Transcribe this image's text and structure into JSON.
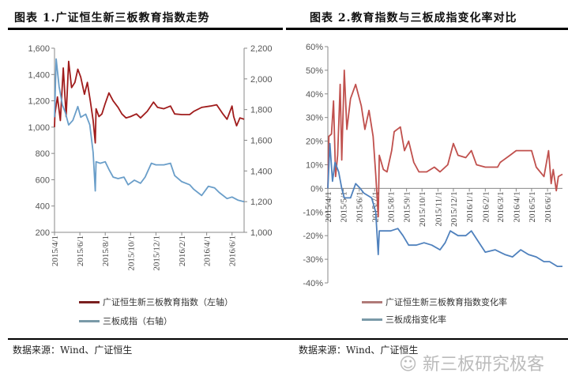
{
  "chart_data": [
    {
      "type": "line",
      "title": "图表 1.广证恒生新三板教育指数走势",
      "yleft": {
        "ticks": [
          "200",
          "400",
          "600",
          "800",
          "1,000",
          "1,200",
          "1,400",
          "1,600"
        ],
        "lim": [
          200,
          1600
        ]
      },
      "yright": {
        "ticks": [
          "1,000",
          "1,200",
          "1,400",
          "1,600",
          "1,800",
          "2,000",
          "2,200"
        ],
        "lim": [
          1000,
          2200
        ]
      },
      "xticks": [
        "2015/4/1",
        "2015/6/1",
        "2015/8/1",
        "2015/10/1",
        "2015/12/1",
        "2016/2/1",
        "2016/4/1",
        "2016/6/1"
      ],
      "legend_position": "bottom",
      "grid": false,
      "series": [
        {
          "name": "广证恒生新三板教育指数（左轴）",
          "axis": "left",
          "color": "#a01c1c",
          "points": [
            [
              "2015-04-01",
              1000
            ],
            [
              "2015-04-02",
              1100
            ],
            [
              "2015-04-08",
              1230
            ],
            [
              "2015-04-15",
              1050
            ],
            [
              "2015-04-22",
              1450
            ],
            [
              "2015-04-29",
              1080
            ],
            [
              "2015-05-05",
              1500
            ],
            [
              "2015-05-12",
              1300
            ],
            [
              "2015-05-20",
              1340
            ],
            [
              "2015-05-27",
              1440
            ],
            [
              "2015-06-03",
              1380
            ],
            [
              "2015-06-12",
              1250
            ],
            [
              "2015-06-19",
              1340
            ],
            [
              "2015-06-26",
              1200
            ],
            [
              "2015-07-03",
              1050
            ],
            [
              "2015-07-08",
              880
            ],
            [
              "2015-07-10",
              1140
            ],
            [
              "2015-07-17",
              1080
            ],
            [
              "2015-07-24",
              1100
            ],
            [
              "2015-08-01",
              1180
            ],
            [
              "2015-08-10",
              1260
            ],
            [
              "2015-08-20",
              1200
            ],
            [
              "2015-09-01",
              1150
            ],
            [
              "2015-09-10",
              1100
            ],
            [
              "2015-09-20",
              1070
            ],
            [
              "2015-10-01",
              1080
            ],
            [
              "2015-10-15",
              1100
            ],
            [
              "2015-10-25",
              1070
            ],
            [
              "2015-11-10",
              1120
            ],
            [
              "2015-11-25",
              1190
            ],
            [
              "2015-12-05",
              1150
            ],
            [
              "2015-12-20",
              1140
            ],
            [
              "2016-01-05",
              1160
            ],
            [
              "2016-01-15",
              1100
            ],
            [
              "2016-02-01",
              1095
            ],
            [
              "2016-02-20",
              1095
            ],
            [
              "2016-03-01",
              1120
            ],
            [
              "2016-03-20",
              1150
            ],
            [
              "2016-04-10",
              1160
            ],
            [
              "2016-04-25",
              1170
            ],
            [
              "2016-05-10",
              1100
            ],
            [
              "2016-05-20",
              1060
            ],
            [
              "2016-06-01",
              1160
            ],
            [
              "2016-06-05",
              1080
            ],
            [
              "2016-06-12",
              1010
            ],
            [
              "2016-06-20",
              1070
            ],
            [
              "2016-06-30",
              1060
            ]
          ]
        },
        {
          "name": "三板成指（右轴）",
          "axis": "right",
          "color": "#6a9ec9",
          "points": [
            [
              "2015-04-01",
              1750
            ],
            [
              "2015-04-05",
              2130
            ],
            [
              "2015-04-12",
              1950
            ],
            [
              "2015-04-20",
              1830
            ],
            [
              "2015-04-27",
              1780
            ],
            [
              "2015-05-05",
              1700
            ],
            [
              "2015-05-15",
              1730
            ],
            [
              "2015-05-27",
              1820
            ],
            [
              "2015-06-03",
              1750
            ],
            [
              "2015-06-15",
              1770
            ],
            [
              "2015-06-25",
              1700
            ],
            [
              "2015-07-03",
              1520
            ],
            [
              "2015-07-08",
              1270
            ],
            [
              "2015-07-10",
              1460
            ],
            [
              "2015-07-20",
              1450
            ],
            [
              "2015-08-01",
              1460
            ],
            [
              "2015-08-10",
              1410
            ],
            [
              "2015-08-20",
              1360
            ],
            [
              "2015-09-01",
              1350
            ],
            [
              "2015-09-15",
              1360
            ],
            [
              "2015-09-25",
              1310
            ],
            [
              "2015-10-10",
              1340
            ],
            [
              "2015-10-25",
              1320
            ],
            [
              "2015-11-05",
              1360
            ],
            [
              "2015-11-20",
              1450
            ],
            [
              "2015-12-01",
              1440
            ],
            [
              "2015-12-20",
              1440
            ],
            [
              "2016-01-05",
              1450
            ],
            [
              "2016-01-15",
              1370
            ],
            [
              "2016-02-01",
              1330
            ],
            [
              "2016-02-20",
              1310
            ],
            [
              "2016-03-01",
              1280
            ],
            [
              "2016-03-20",
              1240
            ],
            [
              "2016-04-05",
              1300
            ],
            [
              "2016-04-20",
              1290
            ],
            [
              "2016-05-01",
              1260
            ],
            [
              "2016-05-20",
              1220
            ],
            [
              "2016-06-01",
              1230
            ],
            [
              "2016-06-15",
              1210
            ],
            [
              "2016-06-30",
              1200
            ]
          ]
        }
      ]
    },
    {
      "type": "line",
      "title": "图表 2.教育指数与三板成指变化率对比",
      "yleft": {
        "ticks": [
          "-40%",
          "-30%",
          "-20%",
          "-10%",
          "0%",
          "10%",
          "20%",
          "30%",
          "40%",
          "50%",
          "60%"
        ],
        "lim": [
          -40,
          60
        ]
      },
      "xticks": [
        "2015/4/1",
        "2015/5/1",
        "2015/6/1",
        "2015/7/1",
        "2015/8/1",
        "2015/9/1",
        "2015/10/1",
        "2015/11/1",
        "2015/12/1",
        "2016/1/1",
        "2016/2/1",
        "2016/3/1",
        "2016/4/1",
        "2016/5/1",
        "2016/6/1"
      ],
      "legend_position": "bottom",
      "grid": false,
      "series": [
        {
          "name": "广证恒生新三板教育指数变化率",
          "color": "#c0504d",
          "points": [
            [
              "2015-04-01",
              0
            ],
            [
              "2015-04-03",
              22
            ],
            [
              "2015-04-08",
              23
            ],
            [
              "2015-04-12",
              37
            ],
            [
              "2015-04-16",
              5
            ],
            [
              "2015-04-20",
              14
            ],
            [
              "2015-04-25",
              44
            ],
            [
              "2015-04-28",
              12
            ],
            [
              "2015-05-03",
              50
            ],
            [
              "2015-05-08",
              25
            ],
            [
              "2015-05-15",
              38
            ],
            [
              "2015-05-25",
              44
            ],
            [
              "2015-06-05",
              35
            ],
            [
              "2015-06-12",
              25
            ],
            [
              "2015-06-20",
              33
            ],
            [
              "2015-06-28",
              22
            ],
            [
              "2015-07-03",
              6
            ],
            [
              "2015-07-08",
              -12
            ],
            [
              "2015-07-10",
              14
            ],
            [
              "2015-07-18",
              8
            ],
            [
              "2015-07-25",
              7
            ],
            [
              "2015-08-03",
              16
            ],
            [
              "2015-08-08",
              24
            ],
            [
              "2015-08-20",
              26
            ],
            [
              "2015-08-28",
              16
            ],
            [
              "2015-09-05",
              20
            ],
            [
              "2015-09-15",
              11
            ],
            [
              "2015-09-25",
              7
            ],
            [
              "2015-10-10",
              7
            ],
            [
              "2015-10-25",
              9
            ],
            [
              "2015-11-05",
              7
            ],
            [
              "2015-11-20",
              10
            ],
            [
              "2015-12-01",
              19
            ],
            [
              "2015-12-10",
              14
            ],
            [
              "2015-12-25",
              13
            ],
            [
              "2016-01-05",
              16
            ],
            [
              "2016-01-15",
              10
            ],
            [
              "2016-02-01",
              9
            ],
            [
              "2016-02-25",
              9
            ],
            [
              "2016-03-01",
              11
            ],
            [
              "2016-03-20",
              14
            ],
            [
              "2016-04-01",
              16
            ],
            [
              "2016-04-20",
              16
            ],
            [
              "2016-05-01",
              16
            ],
            [
              "2016-05-10",
              9
            ],
            [
              "2016-05-25",
              5
            ],
            [
              "2016-06-03",
              16
            ],
            [
              "2016-06-08",
              2
            ],
            [
              "2016-06-12",
              8
            ],
            [
              "2016-06-18",
              -1
            ],
            [
              "2016-06-22",
              5
            ],
            [
              "2016-06-30",
              6
            ]
          ]
        },
        {
          "name": "三板成指变化率",
          "color": "#4f81bd",
          "points": [
            [
              "2015-04-01",
              0
            ],
            [
              "2015-04-05",
              19
            ],
            [
              "2015-04-10",
              3
            ],
            [
              "2015-04-15",
              11
            ],
            [
              "2015-04-22",
              7
            ],
            [
              "2015-04-28",
              0
            ],
            [
              "2015-05-03",
              -4
            ],
            [
              "2015-05-15",
              -4
            ],
            [
              "2015-05-25",
              2
            ],
            [
              "2015-06-03",
              0
            ],
            [
              "2015-06-10",
              -2
            ],
            [
              "2015-06-25",
              -4
            ],
            [
              "2015-07-03",
              -10
            ],
            [
              "2015-07-08",
              -28
            ],
            [
              "2015-07-10",
              -18
            ],
            [
              "2015-07-20",
              -18
            ],
            [
              "2015-08-01",
              -18
            ],
            [
              "2015-08-15",
              -17
            ],
            [
              "2015-08-25",
              -20
            ],
            [
              "2015-09-05",
              -24
            ],
            [
              "2015-09-20",
              -24
            ],
            [
              "2015-10-05",
              -23
            ],
            [
              "2015-10-20",
              -24
            ],
            [
              "2015-11-05",
              -26
            ],
            [
              "2015-11-15",
              -23
            ],
            [
              "2015-11-25",
              -18
            ],
            [
              "2015-12-10",
              -20
            ],
            [
              "2015-12-25",
              -20
            ],
            [
              "2016-01-05",
              -18
            ],
            [
              "2016-01-20",
              -23
            ],
            [
              "2016-02-01",
              -27
            ],
            [
              "2016-02-20",
              -26
            ],
            [
              "2016-03-10",
              -28
            ],
            [
              "2016-03-25",
              -29
            ],
            [
              "2016-04-10",
              -26
            ],
            [
              "2016-04-25",
              -28
            ],
            [
              "2016-05-10",
              -29
            ],
            [
              "2016-05-25",
              -31
            ],
            [
              "2016-06-05",
              -31
            ],
            [
              "2016-06-20",
              -33
            ],
            [
              "2016-06-30",
              -33
            ]
          ]
        }
      ]
    }
  ],
  "source_left": "数据来源：Wind、广证恒生",
  "source_right": "数据来源：Wind、广证恒生",
  "watermark": "新三板研究极客"
}
